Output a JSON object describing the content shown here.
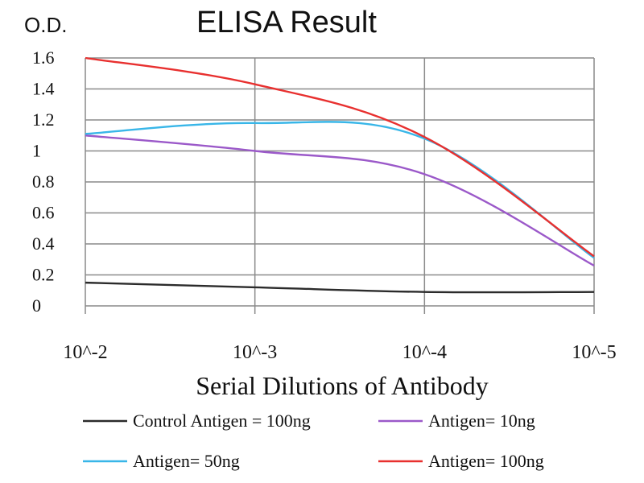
{
  "chart_data": {
    "type": "line",
    "title": "ELISA Result",
    "ylabel": "O.D.",
    "xlabel": "Serial Dilutions of Antibody",
    "x": [
      "10^-2",
      "10^-3",
      "10^-4",
      "10^-5"
    ],
    "ylim": [
      0,
      1.6
    ],
    "yticks": [
      "0",
      "0.2",
      "0.4",
      "0.6",
      "0.8",
      "1",
      "1.2",
      "1.4",
      "1.6"
    ],
    "grid": true,
    "legend_position": "bottom",
    "series": [
      {
        "name": "Control Antigen = 100ng",
        "color": "#2b2b2b",
        "values": [
          0.15,
          0.12,
          0.09,
          0.09
        ]
      },
      {
        "name": "Antigen= 10ng",
        "color": "#9b59c9",
        "values": [
          1.1,
          1.0,
          0.85,
          0.26
        ]
      },
      {
        "name": "Antigen= 50ng",
        "color": "#38b6e8",
        "values": [
          1.11,
          1.18,
          1.08,
          0.31
        ]
      },
      {
        "name": "Antigen= 100ng",
        "color": "#e8302f",
        "values": [
          1.6,
          1.43,
          1.09,
          0.32
        ]
      }
    ]
  }
}
